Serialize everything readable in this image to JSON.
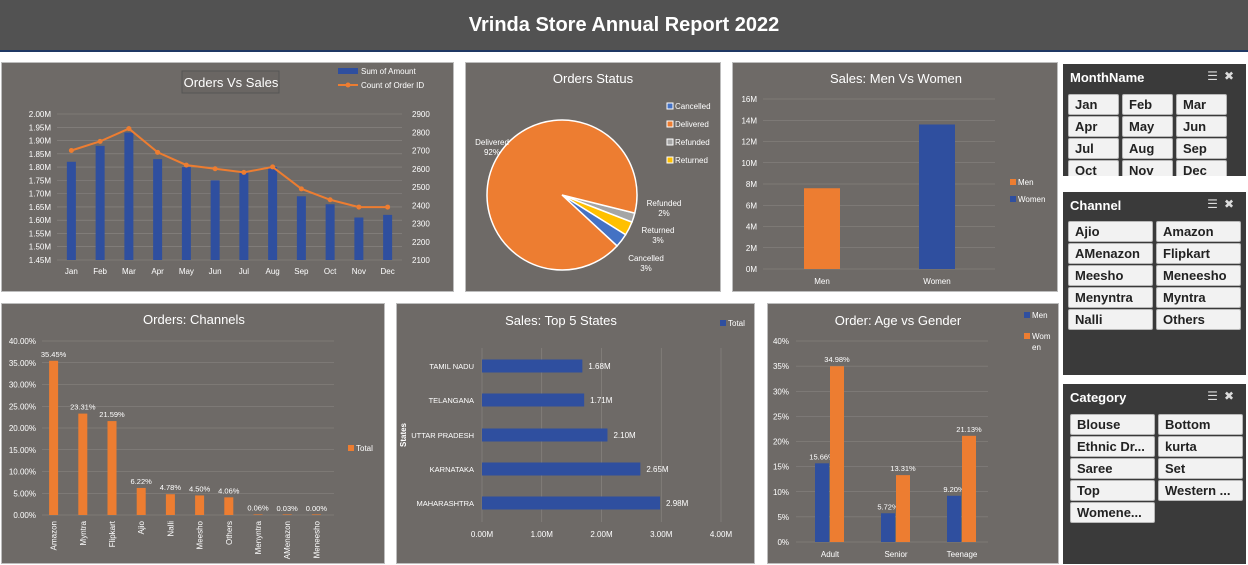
{
  "report_title": "Vrinda Store Annual Report 2022",
  "colors": {
    "blue": "#2f4f9f",
    "orange": "#ed7d31",
    "panel": "#6e6a67",
    "grid": "#8c8884"
  },
  "slicers": [
    {
      "title": "MonthName",
      "items": [
        "Jan",
        "Feb",
        "Mar",
        "Apr",
        "May",
        "Jun",
        "Jul",
        "Aug",
        "Sep",
        "Oct",
        "Nov",
        "Dec"
      ],
      "tool_icons": [
        "multi-select-icon",
        "clear-filter-icon"
      ]
    },
    {
      "title": "Channel",
      "items": [
        "Ajio",
        "Amazon",
        "AMenazon",
        "Flipkart",
        "Meesho",
        "Meneesho",
        "Menyntra",
        "Myntra",
        "Nalli",
        "Others"
      ],
      "tool_icons": [
        "multi-select-icon",
        "clear-filter-icon"
      ]
    },
    {
      "title": "Category",
      "items": [
        "Blouse",
        "Bottom",
        "Ethnic Dr...",
        "kurta",
        "Saree",
        "Set",
        "Top",
        "Western ...",
        "Womene..."
      ],
      "tool_icons": [
        "multi-select-icon",
        "clear-filter-icon"
      ]
    }
  ],
  "chart_data": [
    {
      "id": "orders-vs-sales",
      "type": "bar",
      "title": "Orders Vs Sales",
      "categories": [
        "Jan",
        "Feb",
        "Mar",
        "Apr",
        "May",
        "Jun",
        "Jul",
        "Aug",
        "Sep",
        "Oct",
        "Nov",
        "Dec"
      ],
      "series": [
        {
          "name": "Sum of Amount",
          "chart": "bar",
          "axis": "left",
          "values": [
            1.82,
            1.88,
            1.93,
            1.83,
            1.8,
            1.75,
            1.78,
            1.8,
            1.69,
            1.66,
            1.61,
            1.62
          ]
        },
        {
          "name": "Count of Order ID",
          "chart": "line",
          "axis": "right",
          "values": [
            2700,
            2750,
            2820,
            2690,
            2620,
            2600,
            2580,
            2610,
            2490,
            2430,
            2390,
            2390
          ]
        }
      ],
      "left_axis": {
        "ylim": [
          1.45,
          2.0
        ],
        "ticks": [
          "1.45M",
          "1.50M",
          "1.55M",
          "1.60M",
          "1.65M",
          "1.70M",
          "1.75M",
          "1.80M",
          "1.85M",
          "1.90M",
          "1.95M",
          "2.00M"
        ]
      },
      "right_axis": {
        "ylim": [
          2100,
          2900
        ],
        "ticks": [
          "2100",
          "2200",
          "2300",
          "2400",
          "2500",
          "2600",
          "2700",
          "2800",
          "2900"
        ]
      },
      "legend": "top-right",
      "grid": true
    },
    {
      "id": "orders-status",
      "type": "pie",
      "title": "Orders Status",
      "slices": [
        {
          "label": "Delivered",
          "value": 92,
          "display": "92%",
          "color": "#ed7d31"
        },
        {
          "label": "Refunded",
          "value": 2,
          "display": "2%",
          "color": "#a5a5a5"
        },
        {
          "label": "Returned",
          "value": 3,
          "display": "3%",
          "color": "#ffc000"
        },
        {
          "label": "Cancelled",
          "value": 3,
          "display": "3%",
          "color": "#4472c4"
        }
      ],
      "legend": [
        "Cancelled",
        "Delivered",
        "Refunded",
        "Returned"
      ],
      "legend_position": "right"
    },
    {
      "id": "sales-men-women",
      "type": "bar",
      "title": "Sales: Men Vs Women",
      "categories": [
        "Men",
        "Women"
      ],
      "values": [
        7.6,
        13.6
      ],
      "colors": [
        "#ed7d31",
        "#2f4f9f"
      ],
      "ylim": [
        0,
        16
      ],
      "ticks": [
        "0M",
        "2M",
        "4M",
        "6M",
        "8M",
        "10M",
        "12M",
        "14M",
        "16M"
      ],
      "legend": [
        "Men",
        "Women"
      ],
      "legend_position": "right",
      "grid": true
    },
    {
      "id": "orders-channels",
      "type": "bar",
      "title": "Orders: Channels",
      "categories": [
        "Amazon",
        "Myntra",
        "Flipkart",
        "Ajio",
        "Nalli",
        "Meesho",
        "Others",
        "Menyntra",
        "AMenazon",
        "Meneesho"
      ],
      "values": [
        35.45,
        23.31,
        21.59,
        6.22,
        4.78,
        4.5,
        4.06,
        0.06,
        0.03,
        0.0
      ],
      "labels": [
        "35.45%",
        "23.31%",
        "21.59%",
        "6.22%",
        "4.78%",
        "4.50%",
        "4.06%",
        "0.06%",
        "0.03%",
        "0.00%"
      ],
      "ylim": [
        0,
        40
      ],
      "ticks": [
        "0.00%",
        "5.00%",
        "10.00%",
        "15.00%",
        "20.00%",
        "25.00%",
        "30.00%",
        "35.00%",
        "40.00%"
      ],
      "legend": [
        "Total"
      ],
      "legend_position": "right",
      "grid": true
    },
    {
      "id": "sales-top5-states",
      "type": "bar",
      "orientation": "horizontal",
      "title": "Sales: Top 5 States",
      "ylabel": "States",
      "categories": [
        "TAMIL NADU",
        "TELANGANA",
        "UTTAR PRADESH",
        "KARNATAKA",
        "MAHARASHTRA"
      ],
      "values": [
        1.68,
        1.71,
        2.1,
        2.65,
        2.98
      ],
      "labels": [
        "1.68M",
        "1.71M",
        "2.10M",
        "2.65M",
        "2.98M"
      ],
      "xlim": [
        0,
        4
      ],
      "ticks": [
        "0.00M",
        "1.00M",
        "2.00M",
        "3.00M",
        "4.00M"
      ],
      "legend": [
        "Total"
      ],
      "legend_position": "top-right",
      "grid": true
    },
    {
      "id": "order-age-gender",
      "type": "bar",
      "title": "Order: Age vs Gender",
      "categories": [
        "Adult",
        "Senior",
        "Teenage"
      ],
      "series": [
        {
          "name": "Men",
          "values": [
            15.66,
            5.72,
            9.2
          ],
          "labels": [
            "15.66%",
            "5.72%",
            "9.20%"
          ]
        },
        {
          "name": "Women",
          "values": [
            34.98,
            13.31,
            21.13
          ],
          "labels": [
            "34.98%",
            "13.31%",
            "21.13%"
          ]
        }
      ],
      "legend_labels": [
        "Men",
        "Wom",
        "en"
      ],
      "ylim": [
        0,
        40
      ],
      "ticks": [
        "0%",
        "5%",
        "10%",
        "15%",
        "20%",
        "25%",
        "30%",
        "35%",
        "40%"
      ],
      "legend_position": "top-right",
      "grid": true
    }
  ]
}
